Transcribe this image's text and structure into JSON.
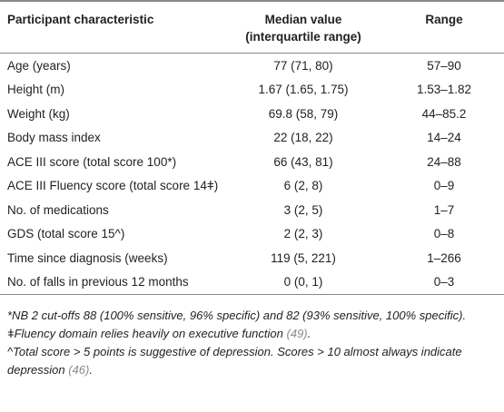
{
  "table": {
    "header": [
      "Participant characteristic",
      "Median value (interquartile range)",
      "Range"
    ],
    "rows": [
      [
        "Age (years)",
        "77 (71, 80)",
        "57–90"
      ],
      [
        "Height (m)",
        "1.67 (1.65, 1.75)",
        "1.53–1.82"
      ],
      [
        "Weight (kg)",
        "69.8 (58, 79)",
        "44–85.2"
      ],
      [
        "Body mass index",
        "22 (18, 22)",
        "14–24"
      ],
      [
        "ACE III score (total score 100*)",
        "66 (43, 81)",
        "24–88"
      ],
      [
        "ACE III Fluency score (total score 14ǂ)",
        "6 (2, 8)",
        "0–9"
      ],
      [
        "No. of medications",
        "3 (2, 5)",
        "1–7"
      ],
      [
        "GDS (total score 15^)",
        "2 (2, 3)",
        "0–8"
      ],
      [
        "Time since diagnosis (weeks)",
        "119 (5, 221)",
        "1–266"
      ],
      [
        "No. of falls in previous 12 months",
        "0 (0, 1)",
        "0–3"
      ]
    ]
  },
  "footnotes": [
    [
      "*NB 2 cut-offs 88 (100% sensitive, 96% specific) and 82 (93% sensitive, 100% specific)."
    ],
    [
      "ǂFluency domain relies heavily on executive function ",
      "(49)",
      "."
    ],
    [
      "^Total score > 5 points is suggestive of depression. Scores > 10 almost always indicate depression ",
      "(46)",
      "."
    ]
  ]
}
